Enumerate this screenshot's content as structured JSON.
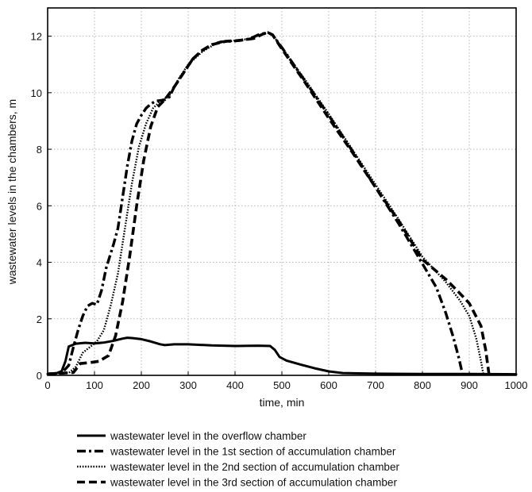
{
  "chart_data": {
    "type": "line",
    "title": "",
    "xlabel": "time, min",
    "ylabel": "wastewater levels in the chambers, m",
    "xlim": [
      0,
      1000
    ],
    "ylim": [
      0,
      13
    ],
    "xticks": [
      0,
      100,
      200,
      300,
      400,
      500,
      600,
      700,
      800,
      900,
      1000
    ],
    "yticks": [
      0,
      2,
      4,
      6,
      8,
      10,
      12
    ],
    "grid": true,
    "legend_position": "below",
    "series": [
      {
        "name": "wastewater level in the overflow chamber",
        "style": "solid",
        "color": "#000000",
        "points": [
          [
            0,
            0.05
          ],
          [
            20,
            0.08
          ],
          [
            30,
            0.15
          ],
          [
            38,
            0.5
          ],
          [
            45,
            1.02
          ],
          [
            60,
            1.12
          ],
          [
            80,
            1.15
          ],
          [
            100,
            1.13
          ],
          [
            120,
            1.16
          ],
          [
            140,
            1.22
          ],
          [
            160,
            1.3
          ],
          [
            170,
            1.33
          ],
          [
            180,
            1.32
          ],
          [
            200,
            1.28
          ],
          [
            220,
            1.2
          ],
          [
            240,
            1.1
          ],
          [
            250,
            1.07
          ],
          [
            270,
            1.1
          ],
          [
            300,
            1.1
          ],
          [
            350,
            1.06
          ],
          [
            400,
            1.04
          ],
          [
            450,
            1.05
          ],
          [
            475,
            1.04
          ],
          [
            485,
            0.9
          ],
          [
            495,
            0.65
          ],
          [
            510,
            0.52
          ],
          [
            540,
            0.38
          ],
          [
            570,
            0.25
          ],
          [
            600,
            0.14
          ],
          [
            630,
            0.08
          ],
          [
            700,
            0.06
          ],
          [
            800,
            0.05
          ],
          [
            900,
            0.05
          ],
          [
            1000,
            0.04
          ]
        ]
      },
      {
        "name": "wastewater level in the 1st section of accumulation chamber",
        "style": "dashdot",
        "color": "#000000",
        "points": [
          [
            0,
            0.05
          ],
          [
            30,
            0.08
          ],
          [
            45,
            0.35
          ],
          [
            55,
            1.0
          ],
          [
            65,
            1.6
          ],
          [
            75,
            2.1
          ],
          [
            85,
            2.45
          ],
          [
            95,
            2.55
          ],
          [
            105,
            2.5
          ],
          [
            115,
            3.0
          ],
          [
            125,
            3.8
          ],
          [
            140,
            4.6
          ],
          [
            150,
            5.2
          ],
          [
            160,
            6.3
          ],
          [
            170,
            7.4
          ],
          [
            180,
            8.3
          ],
          [
            190,
            8.9
          ],
          [
            200,
            9.2
          ],
          [
            210,
            9.45
          ],
          [
            220,
            9.6
          ],
          [
            230,
            9.7
          ],
          [
            250,
            9.75
          ],
          [
            260,
            9.85
          ],
          [
            270,
            10.2
          ],
          [
            290,
            10.7
          ],
          [
            310,
            11.2
          ],
          [
            330,
            11.5
          ],
          [
            350,
            11.7
          ],
          [
            370,
            11.8
          ],
          [
            400,
            11.83
          ],
          [
            430,
            11.9
          ],
          [
            450,
            12.05
          ],
          [
            470,
            12.13
          ],
          [
            480,
            12.05
          ],
          [
            500,
            11.6
          ],
          [
            550,
            10.4
          ],
          [
            600,
            9.2
          ],
          [
            650,
            7.95
          ],
          [
            700,
            6.65
          ],
          [
            750,
            5.35
          ],
          [
            800,
            3.95
          ],
          [
            830,
            3.1
          ],
          [
            850,
            2.2
          ],
          [
            865,
            1.4
          ],
          [
            878,
            0.6
          ],
          [
            885,
            0.08
          ]
        ]
      },
      {
        "name": "wastewater level in the 2nd section of accumulation chamber",
        "style": "dotted",
        "color": "#000000",
        "points": [
          [
            0,
            0.05
          ],
          [
            45,
            0.08
          ],
          [
            60,
            0.3
          ],
          [
            75,
            0.8
          ],
          [
            90,
            1.0
          ],
          [
            105,
            1.2
          ],
          [
            120,
            1.6
          ],
          [
            135,
            2.5
          ],
          [
            150,
            3.6
          ],
          [
            165,
            5.2
          ],
          [
            180,
            6.8
          ],
          [
            195,
            8.1
          ],
          [
            210,
            8.9
          ],
          [
            225,
            9.45
          ],
          [
            240,
            9.7
          ],
          [
            260,
            9.9
          ],
          [
            280,
            10.5
          ],
          [
            300,
            11.0
          ],
          [
            330,
            11.45
          ],
          [
            360,
            11.75
          ],
          [
            400,
            11.85
          ],
          [
            430,
            11.9
          ],
          [
            455,
            12.05
          ],
          [
            470,
            12.13
          ],
          [
            480,
            12.05
          ],
          [
            500,
            11.6
          ],
          [
            550,
            10.45
          ],
          [
            600,
            9.25
          ],
          [
            650,
            8.0
          ],
          [
            700,
            6.75
          ],
          [
            750,
            5.5
          ],
          [
            800,
            4.2
          ],
          [
            850,
            3.3
          ],
          [
            880,
            2.65
          ],
          [
            900,
            2.1
          ],
          [
            915,
            1.3
          ],
          [
            925,
            0.5
          ],
          [
            930,
            0.05
          ]
        ]
      },
      {
        "name": "wastewater level in the 3rd section of accumulation chamber",
        "style": "dashed",
        "color": "#000000",
        "points": [
          [
            0,
            0.05
          ],
          [
            55,
            0.1
          ],
          [
            70,
            0.42
          ],
          [
            90,
            0.45
          ],
          [
            110,
            0.5
          ],
          [
            130,
            0.7
          ],
          [
            145,
            1.4
          ],
          [
            160,
            2.6
          ],
          [
            175,
            4.2
          ],
          [
            190,
            6.0
          ],
          [
            205,
            7.6
          ],
          [
            220,
            8.8
          ],
          [
            235,
            9.5
          ],
          [
            250,
            9.75
          ],
          [
            270,
            10.2
          ],
          [
            290,
            10.7
          ],
          [
            310,
            11.2
          ],
          [
            330,
            11.5
          ],
          [
            350,
            11.7
          ],
          [
            380,
            11.82
          ],
          [
            410,
            11.85
          ],
          [
            440,
            11.92
          ],
          [
            460,
            12.08
          ],
          [
            470,
            12.13
          ],
          [
            480,
            12.05
          ],
          [
            500,
            11.55
          ],
          [
            550,
            10.35
          ],
          [
            600,
            9.1
          ],
          [
            650,
            7.9
          ],
          [
            700,
            6.65
          ],
          [
            750,
            5.45
          ],
          [
            800,
            4.1
          ],
          [
            850,
            3.4
          ],
          [
            880,
            2.9
          ],
          [
            900,
            2.55
          ],
          [
            925,
            1.75
          ],
          [
            935,
            0.9
          ],
          [
            942,
            0.05
          ]
        ]
      }
    ]
  },
  "legend": {
    "items": [
      "wastewater level in the overflow chamber",
      "wastewater level in the 1st section of accumulation chamber",
      "wastewater level in the 2nd section of accumulation chamber",
      "wastewater level in the 3rd section of accumulation chamber"
    ]
  }
}
